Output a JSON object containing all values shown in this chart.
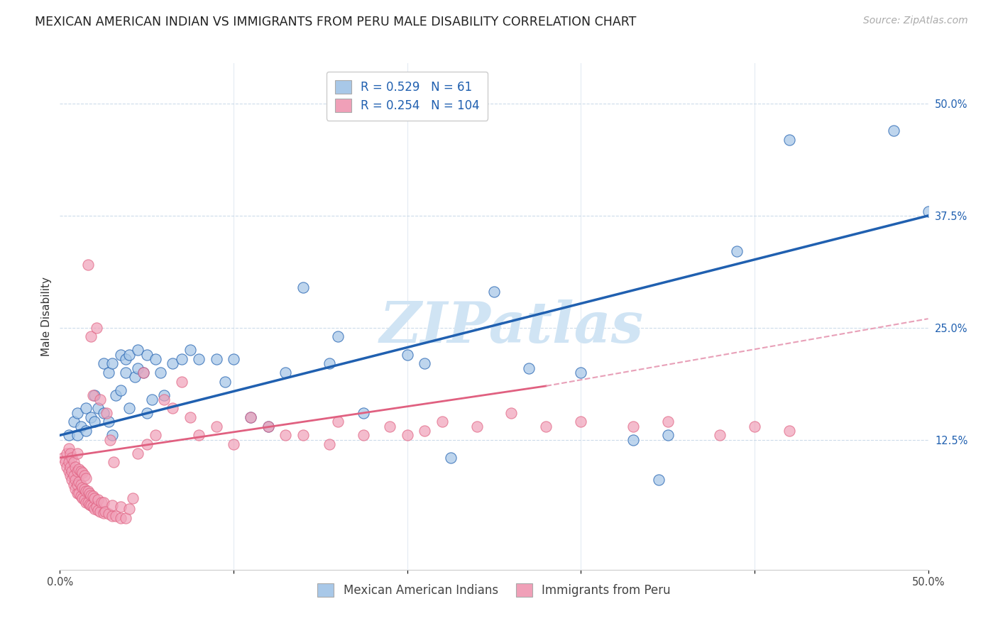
{
  "title": "MEXICAN AMERICAN INDIAN VS IMMIGRANTS FROM PERU MALE DISABILITY CORRELATION CHART",
  "source": "Source: ZipAtlas.com",
  "ylabel": "Male Disability",
  "ytick_labels": [
    "12.5%",
    "25.0%",
    "37.5%",
    "50.0%"
  ],
  "ytick_values": [
    0.125,
    0.25,
    0.375,
    0.5
  ],
  "xlim": [
    0.0,
    0.5
  ],
  "ylim": [
    -0.02,
    0.545
  ],
  "watermark": "ZIPatlas",
  "legend": {
    "blue_R": "0.529",
    "blue_N": "61",
    "pink_R": "0.254",
    "pink_N": "104"
  },
  "blue_scatter_x": [
    0.005,
    0.008,
    0.01,
    0.01,
    0.012,
    0.015,
    0.015,
    0.018,
    0.02,
    0.02,
    0.022,
    0.025,
    0.025,
    0.028,
    0.028,
    0.03,
    0.03,
    0.032,
    0.035,
    0.035,
    0.038,
    0.038,
    0.04,
    0.04,
    0.043,
    0.045,
    0.045,
    0.048,
    0.05,
    0.05,
    0.053,
    0.055,
    0.058,
    0.06,
    0.065,
    0.07,
    0.075,
    0.08,
    0.09,
    0.095,
    0.1,
    0.11,
    0.12,
    0.13,
    0.14,
    0.155,
    0.16,
    0.175,
    0.2,
    0.21,
    0.225,
    0.25,
    0.27,
    0.3,
    0.33,
    0.35,
    0.39,
    0.42,
    0.345,
    0.48,
    0.5
  ],
  "blue_scatter_y": [
    0.13,
    0.145,
    0.13,
    0.155,
    0.14,
    0.16,
    0.135,
    0.15,
    0.145,
    0.175,
    0.16,
    0.155,
    0.21,
    0.145,
    0.2,
    0.13,
    0.21,
    0.175,
    0.18,
    0.22,
    0.2,
    0.215,
    0.16,
    0.22,
    0.195,
    0.205,
    0.225,
    0.2,
    0.155,
    0.22,
    0.17,
    0.215,
    0.2,
    0.175,
    0.21,
    0.215,
    0.225,
    0.215,
    0.215,
    0.19,
    0.215,
    0.15,
    0.14,
    0.2,
    0.295,
    0.21,
    0.24,
    0.155,
    0.22,
    0.21,
    0.105,
    0.29,
    0.205,
    0.2,
    0.125,
    0.13,
    0.335,
    0.46,
    0.08,
    0.47,
    0.38
  ],
  "pink_scatter_x": [
    0.002,
    0.003,
    0.004,
    0.004,
    0.005,
    0.005,
    0.005,
    0.006,
    0.006,
    0.006,
    0.007,
    0.007,
    0.007,
    0.008,
    0.008,
    0.008,
    0.009,
    0.009,
    0.009,
    0.01,
    0.01,
    0.01,
    0.01,
    0.011,
    0.011,
    0.011,
    0.012,
    0.012,
    0.012,
    0.013,
    0.013,
    0.013,
    0.014,
    0.014,
    0.014,
    0.015,
    0.015,
    0.015,
    0.016,
    0.016,
    0.017,
    0.017,
    0.018,
    0.018,
    0.019,
    0.019,
    0.02,
    0.02,
    0.021,
    0.022,
    0.022,
    0.023,
    0.024,
    0.025,
    0.025,
    0.026,
    0.028,
    0.03,
    0.03,
    0.032,
    0.035,
    0.035,
    0.038,
    0.04,
    0.042,
    0.045,
    0.048,
    0.05,
    0.055,
    0.06,
    0.065,
    0.07,
    0.075,
    0.08,
    0.09,
    0.1,
    0.11,
    0.12,
    0.13,
    0.14,
    0.155,
    0.16,
    0.175,
    0.19,
    0.2,
    0.21,
    0.22,
    0.24,
    0.26,
    0.28,
    0.3,
    0.33,
    0.35,
    0.38,
    0.4,
    0.42,
    0.016,
    0.018,
    0.019,
    0.021,
    0.023,
    0.027,
    0.029,
    0.031
  ],
  "pink_scatter_y": [
    0.105,
    0.1,
    0.095,
    0.11,
    0.09,
    0.1,
    0.115,
    0.085,
    0.095,
    0.11,
    0.08,
    0.09,
    0.105,
    0.075,
    0.085,
    0.1,
    0.07,
    0.08,
    0.095,
    0.065,
    0.075,
    0.09,
    0.11,
    0.065,
    0.078,
    0.092,
    0.062,
    0.075,
    0.09,
    0.06,
    0.072,
    0.088,
    0.058,
    0.07,
    0.085,
    0.055,
    0.068,
    0.082,
    0.055,
    0.068,
    0.053,
    0.065,
    0.052,
    0.063,
    0.05,
    0.062,
    0.048,
    0.06,
    0.05,
    0.046,
    0.058,
    0.045,
    0.055,
    0.043,
    0.055,
    0.045,
    0.042,
    0.04,
    0.052,
    0.04,
    0.038,
    0.05,
    0.038,
    0.048,
    0.06,
    0.11,
    0.2,
    0.12,
    0.13,
    0.17,
    0.16,
    0.19,
    0.15,
    0.13,
    0.14,
    0.12,
    0.15,
    0.14,
    0.13,
    0.13,
    0.12,
    0.145,
    0.13,
    0.14,
    0.13,
    0.135,
    0.145,
    0.14,
    0.155,
    0.14,
    0.145,
    0.14,
    0.145,
    0.13,
    0.14,
    0.135,
    0.32,
    0.24,
    0.175,
    0.25,
    0.17,
    0.155,
    0.125,
    0.1
  ],
  "blue_color": "#a8c8e8",
  "pink_color": "#f0a0b8",
  "blue_line_color": "#2060b0",
  "pink_line_color": "#e06080",
  "pink_dash_color": "#e8a0b8",
  "bg_color": "#ffffff",
  "grid_color": "#c8d8e8",
  "watermark_color": "#d0e4f4",
  "title_fontsize": 12.5,
  "source_fontsize": 10,
  "axis_label_fontsize": 11,
  "tick_fontsize": 10.5,
  "legend_fontsize": 12
}
